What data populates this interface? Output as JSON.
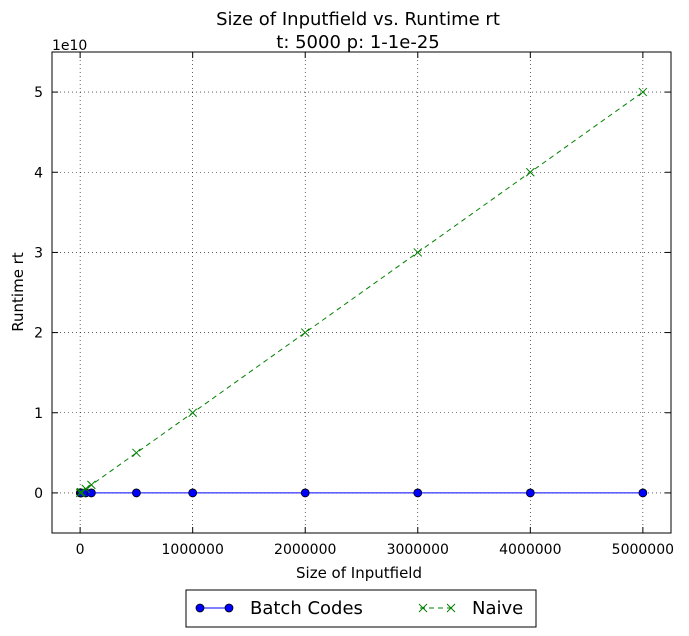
{
  "chart_data": {
    "type": "line",
    "title_line1": "Size of Inputfield  vs. Runtime rt",
    "title_line2": "t: 5000 p: 1-1e-25",
    "xlabel": "Size of Inputfield",
    "ylabel": "Runtime rt",
    "y_offset_label": "1e10",
    "xlim": [
      -250000,
      5250000
    ],
    "ylim": [
      -0.5,
      5.5
    ],
    "y_scale_note": "values in units of 1e10",
    "xticks": [
      0,
      1000000,
      2000000,
      3000000,
      4000000,
      5000000
    ],
    "xtick_labels": [
      "0",
      "1000000",
      "2000000",
      "3000000",
      "4000000",
      "5000000"
    ],
    "yticks": [
      0,
      1,
      2,
      3,
      4,
      5
    ],
    "ytick_labels": [
      "0",
      "1",
      "2",
      "3",
      "4",
      "5"
    ],
    "grid": true,
    "legend_placement": "bottom-center outside",
    "series": [
      {
        "name": "Batch Codes",
        "color": "#0000ff",
        "marker": "circle",
        "linestyle": "solid",
        "x": [
          1000,
          5000,
          10000,
          50000,
          100000,
          500000,
          1000000,
          2000000,
          3000000,
          4000000,
          5000000
        ],
        "y": [
          0,
          0,
          0,
          0,
          0,
          0,
          0,
          0,
          0,
          0,
          0
        ]
      },
      {
        "name": "Naive",
        "color": "#008000",
        "marker": "x",
        "linestyle": "dashed",
        "x": [
          1000,
          5000,
          10000,
          50000,
          100000,
          500000,
          1000000,
          2000000,
          3000000,
          4000000,
          5000000
        ],
        "y": [
          0.001,
          0.005,
          0.01,
          0.05,
          0.1,
          0.5,
          1.0,
          2.0,
          3.0,
          4.0,
          5.0
        ]
      }
    ]
  }
}
